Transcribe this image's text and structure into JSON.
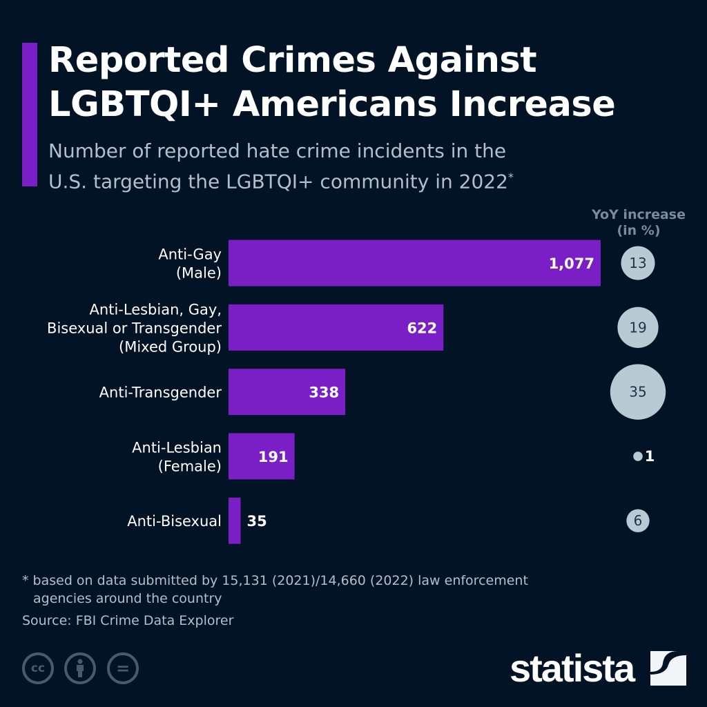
{
  "header": {
    "title_line1": "Reported Crimes Against",
    "title_line2": "LGBTQI+ Americans Increase",
    "subtitle_line1": "Number of reported hate crime incidents in the",
    "subtitle_line2": "U.S. targeting the LGBTQI+ community in 2022",
    "subtitle_mark": "*"
  },
  "chart_data": {
    "type": "bar",
    "orientation": "horizontal",
    "categories": [
      [
        "Anti-Gay",
        "(Male)"
      ],
      [
        "Anti-Lesbian, Gay,",
        "Bisexual or Transgender",
        "(Mixed Group)"
      ],
      [
        "Anti-Transgender"
      ],
      [
        "Anti-Lesbian",
        "(Female)"
      ],
      [
        "Anti-Bisexual"
      ]
    ],
    "values": [
      1077,
      622,
      338,
      191,
      35
    ],
    "value_labels": [
      "1,077",
      "622",
      "338",
      "191",
      "35"
    ],
    "bar_color": "#7a1fc6",
    "yoy_title_line1": "YoY increase",
    "yoy_title_line2": "(in %)",
    "yoy_values": [
      13,
      19,
      35,
      1,
      6
    ],
    "bubble_color": "#b9cad5"
  },
  "footer": {
    "note_line1": "* based on data submitted by 15,131 (2021)/14,660 (2022) law enforcement",
    "note_line2": "agencies around the country",
    "source": "Source: FBI Crime Data Explorer",
    "license_icons": [
      "cc-icon",
      "attribution-icon",
      "no-derivatives-icon"
    ],
    "logo": "statista"
  }
}
